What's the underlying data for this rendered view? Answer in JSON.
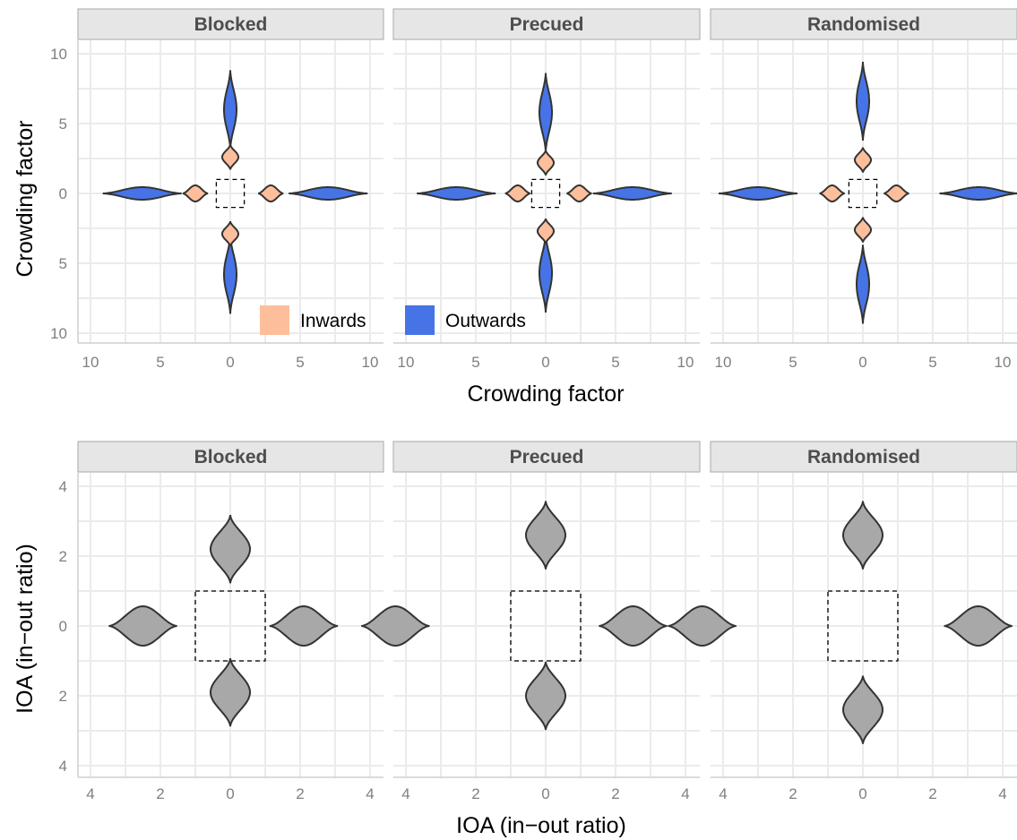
{
  "chart_data": [
    {
      "type": "violin",
      "facets": [
        "Blocked",
        "Precued",
        "Randomised"
      ],
      "xlabel": "Crowding factor",
      "ylabel": "Crowding factor",
      "xlim": [
        -10,
        10
      ],
      "ylim": [
        -10,
        10
      ],
      "x_ticks": [
        -10,
        -5,
        0,
        5,
        10
      ],
      "x_tick_labels": [
        "10",
        "5",
        "0",
        "5",
        "10"
      ],
      "y_ticks": [
        10,
        5,
        0,
        -5,
        -10
      ],
      "y_tick_labels": [
        "10",
        "5",
        "0",
        "5",
        "10"
      ],
      "reference_box": [
        -1,
        1,
        -1,
        1
      ],
      "grid": true,
      "legend": {
        "placement": "bottom-right of first panel",
        "entries": [
          {
            "label": "Inwards",
            "color": "#fdbf9b"
          },
          {
            "label": "Outwards",
            "color": "#4674e6"
          }
        ]
      },
      "series": [
        {
          "name": "Inwards",
          "color": "#fdbf9b",
          "panels": [
            {
              "facet": "Blocked",
              "right": 2.9,
              "left": -2.5,
              "up": 2.6,
              "down": -2.9
            },
            {
              "facet": "Precued",
              "right": 2.4,
              "left": -2.0,
              "up": 2.2,
              "down": -2.7
            },
            {
              "facet": "Randomised",
              "right": 2.4,
              "left": -2.2,
              "up": 2.4,
              "down": -2.6
            }
          ]
        },
        {
          "name": "Outwards",
          "color": "#4674e6",
          "panels": [
            {
              "facet": "Blocked",
              "right": 7.0,
              "left": -6.3,
              "up": 6.0,
              "down": -5.8
            },
            {
              "facet": "Precued",
              "right": 6.2,
              "left": -6.4,
              "up": 5.8,
              "down": -5.7
            },
            {
              "facet": "Randomised",
              "right": 8.3,
              "left": -7.5,
              "up": 6.6,
              "down": -6.5
            }
          ]
        }
      ]
    },
    {
      "type": "violin",
      "facets": [
        "Blocked",
        "Precued",
        "Randomised"
      ],
      "xlabel": "IOA (in−out ratio)",
      "ylabel": "IOA (in−out ratio)",
      "xlim": [
        -4,
        4
      ],
      "ylim": [
        -4,
        4
      ],
      "x_ticks": [
        -4,
        -2,
        0,
        2,
        4
      ],
      "x_tick_labels": [
        "4",
        "2",
        "0",
        "2",
        "4"
      ],
      "y_ticks": [
        4,
        2,
        0,
        -2,
        -4
      ],
      "y_tick_labels": [
        "4",
        "2",
        "0",
        "2",
        "4"
      ],
      "reference_box": [
        -1,
        1,
        -1,
        1
      ],
      "grid": true,
      "color": "#a8a8a8",
      "panels": [
        {
          "facet": "Blocked",
          "right": 2.1,
          "left": -2.5,
          "up": 2.2,
          "down": -1.9
        },
        {
          "facet": "Precued",
          "right": 2.5,
          "left": -4.3,
          "up": 2.6,
          "down": -2.0
        },
        {
          "facet": "Randomised",
          "right": 3.3,
          "left": -4.6,
          "up": 2.6,
          "down": -2.4
        }
      ]
    }
  ]
}
